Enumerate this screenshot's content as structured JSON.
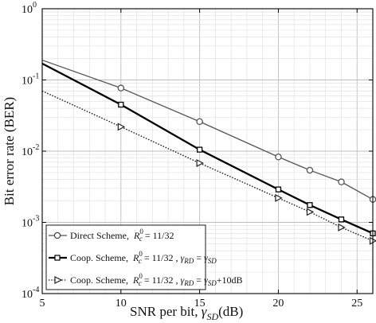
{
  "chart_data": {
    "type": "line",
    "xlabel": "SNR per bit, ",
    "xlabel_symbol": "γ",
    "xlabel_sub": "SD",
    "xlabel_unit": "(dB)",
    "ylabel": "Bit error rate (BER)",
    "xlim": [
      5,
      26
    ],
    "ylim_exp": [
      -4,
      0
    ],
    "y_scale": "log",
    "grid": true,
    "legend_position": "bottom-left",
    "x_ticks": [
      "5",
      "10",
      "15",
      "20",
      "25"
    ],
    "y_ticks": [
      {
        "base": "10",
        "exp": "0"
      },
      {
        "base": "10",
        "exp": "-1"
      },
      {
        "base": "10",
        "exp": "-2"
      },
      {
        "base": "10",
        "exp": "-3"
      },
      {
        "base": "10",
        "exp": "-4"
      }
    ],
    "series": [
      {
        "name": "Direct Scheme,",
        "legend_math": "R_c^0 = 11/32",
        "color": "#555555",
        "line_style": "solid-light",
        "marker": "circle",
        "x": [
          5,
          10,
          15,
          20,
          22,
          24,
          26
        ],
        "y": [
          0.19,
          0.077,
          0.026,
          0.0083,
          0.0054,
          0.0037,
          0.0021
        ],
        "marker_x": [
          10,
          15,
          20,
          22,
          24,
          26
        ]
      },
      {
        "name": "Coop. Scheme,",
        "legend_math": "R_c^0 = 11/32 , γ_RD = γ_SD",
        "color": "#000000",
        "line_style": "solid-bold",
        "marker": "square",
        "x": [
          5,
          10,
          15,
          20,
          22,
          24,
          26
        ],
        "y": [
          0.17,
          0.045,
          0.0105,
          0.0029,
          0.00175,
          0.0011,
          0.0007
        ],
        "marker_x": [
          10,
          15,
          20,
          22,
          24,
          26
        ]
      },
      {
        "name": "Coop. Scheme,",
        "legend_math": "R_c^0 = 11/32 , γ_RD = γ_SD+10dB",
        "color": "#222222",
        "line_style": "dotted",
        "marker": "triangle-right",
        "x": [
          5,
          10,
          15,
          20,
          22,
          24,
          26
        ],
        "y": [
          0.07,
          0.022,
          0.0068,
          0.0022,
          0.0014,
          0.00085,
          0.00055
        ],
        "marker_x": [
          10,
          15,
          20,
          22,
          24,
          26
        ]
      }
    ]
  }
}
